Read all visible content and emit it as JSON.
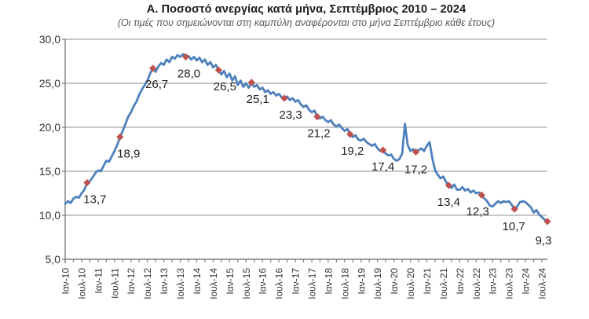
{
  "chart_data": {
    "type": "line",
    "title": "Α. Ποσοστό ανεργίας κατά μήνα, Σεπτέμβριος 2010 – 2024",
    "subtitle": "(Οι τιμές που σημειώνονται στη καμπύλη αναφέρονται στο μήνα Σεπτέμβριο κάθε έτους)",
    "xlabel": "",
    "ylabel": "",
    "ylim": [
      5,
      30
    ],
    "y_ticks": [
      5,
      10,
      15,
      20,
      25,
      30
    ],
    "y_tick_labels": [
      "5,0",
      "10,0",
      "15,0",
      "20,0",
      "25,0",
      "30,0"
    ],
    "grid": true,
    "legend": "none",
    "line_color": "#4E80BC",
    "marker_color": "#C0504D",
    "axis_color": "#7F7F7F",
    "grid_color": "#A3A3A3",
    "x_domain": "monthly, Ιαν-2010 to Σεπ-2024",
    "x_tick_labels": [
      "Ιαν-10",
      "Ιουλ-10",
      "Ιαν-11",
      "Ιουλ-11",
      "Ιαν-12",
      "Ιουλ-12",
      "Ιαν-13",
      "Ιουλ-13",
      "Ιαν-14",
      "Ιουλ-14",
      "Ιαν-15",
      "Ιουλ-15",
      "Ιαν-16",
      "Ιουλ-16",
      "Ιαν-17",
      "Ιουλ-17",
      "Ιαν-18",
      "Ιουλ-18",
      "Ιαν-19",
      "Ιουλ-19",
      "Ιαν-20",
      "Ιουλ-20",
      "Ιαν-21",
      "Ιουλ-21",
      "Ιαν-22",
      "Ιουλ-22",
      "Ιαν-23",
      "Ιουλ-23",
      "Ιαν-24",
      "Ιουλ-24"
    ],
    "x_tick_label_every_months": 6,
    "x_minor_tick_every_months": 3,
    "series": [
      {
        "name": "Ποσοστό ανεργίας (%)",
        "values": [
          11.3,
          11.6,
          11.4,
          11.9,
          12.1,
          12.0,
          12.5,
          12.9,
          13.7,
          13.9,
          14.3,
          14.8,
          15.1,
          15.0,
          15.6,
          16.2,
          16.1,
          16.7,
          17.3,
          18.0,
          18.9,
          19.6,
          20.4,
          21.2,
          21.7,
          22.4,
          22.9,
          23.7,
          24.3,
          24.8,
          25.3,
          26.1,
          26.7,
          26.3,
          26.9,
          27.3,
          27.1,
          27.7,
          27.4,
          28.0,
          27.8,
          28.2,
          28.0,
          28.3,
          28.0,
          28.1,
          27.7,
          28.0,
          27.6,
          27.9,
          27.4,
          27.7,
          27.1,
          27.4,
          26.8,
          27.1,
          26.5,
          26.0,
          26.4,
          25.7,
          26.1,
          25.3,
          25.8,
          24.8,
          25.3,
          24.6,
          25.0,
          24.5,
          25.1,
          24.6,
          24.8,
          24.3,
          24.5,
          24.0,
          24.2,
          23.8,
          24.0,
          23.6,
          23.8,
          23.4,
          23.3,
          23.5,
          23.1,
          23.3,
          22.9,
          23.1,
          22.6,
          22.3,
          22.5,
          22.0,
          21.7,
          21.9,
          21.2,
          21.0,
          21.2,
          20.8,
          20.6,
          20.8,
          20.3,
          20.1,
          20.3,
          19.9,
          19.6,
          19.8,
          19.2,
          18.9,
          19.1,
          18.6,
          18.5,
          18.7,
          18.3,
          18.1,
          17.9,
          18.1,
          17.6,
          17.3,
          17.4,
          17.0,
          16.8,
          16.9,
          16.4,
          16.2,
          16.4,
          17.0,
          20.4,
          18.0,
          17.3,
          17.5,
          17.2,
          17.4,
          17.6,
          17.3,
          17.9,
          18.3,
          16.5,
          15.1,
          14.6,
          14.2,
          14.4,
          13.8,
          13.4,
          13.1,
          13.5,
          12.9,
          12.9,
          13.2,
          12.8,
          13.0,
          12.6,
          12.8,
          12.5,
          12.6,
          12.3,
          11.9,
          11.6,
          11.1,
          11.0,
          11.3,
          11.6,
          11.4,
          11.6,
          11.5,
          11.6,
          11.2,
          10.7,
          11.0,
          11.5,
          11.6,
          11.5,
          11.2,
          10.9,
          10.3,
          10.6,
          10.1,
          9.8,
          9.5,
          9.3
        ]
      }
    ],
    "september_annotations": [
      {
        "text": "13,7",
        "month_index": 8
      },
      {
        "text": "18,9",
        "month_index": 20
      },
      {
        "text": "26,7",
        "month_index": 32
      },
      {
        "text": "28,0",
        "month_index": 44
      },
      {
        "text": "26,5",
        "month_index": 56
      },
      {
        "text": "25,1",
        "month_index": 68
      },
      {
        "text": "23,3",
        "month_index": 80
      },
      {
        "text": "21,2",
        "month_index": 92
      },
      {
        "text": "19,2",
        "month_index": 104
      },
      {
        "text": "17,4",
        "month_index": 116
      },
      {
        "text": "17,2",
        "month_index": 128
      },
      {
        "text": "13,4",
        "month_index": 140
      },
      {
        "text": "12,3",
        "month_index": 152
      },
      {
        "text": "10,7",
        "month_index": 164
      },
      {
        "text": "9,3",
        "month_index": 176
      }
    ]
  }
}
